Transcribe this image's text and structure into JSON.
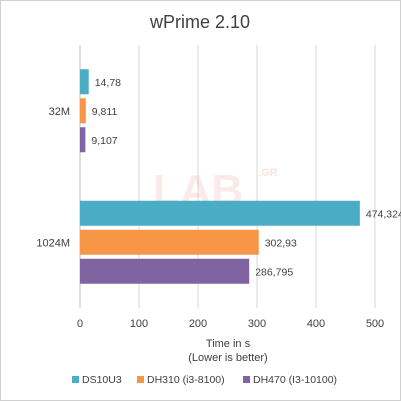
{
  "chart_data": {
    "type": "bar",
    "orientation": "horizontal",
    "title": "wPrime 2.10",
    "categories": [
      "32M",
      "1024M"
    ],
    "series": [
      {
        "name": "DS10U3",
        "color": "#4bacc6",
        "values": [
          14.78,
          474.324
        ],
        "labels": [
          "14,78",
          "474,324"
        ]
      },
      {
        "name": "DH310 (i3-8100)",
        "color": "#f79646",
        "values": [
          9.811,
          302.93
        ],
        "labels": [
          "9,811",
          "302,93"
        ]
      },
      {
        "name": "DH470 (I3-10100)",
        "color": "#8064a2",
        "values": [
          9.107,
          286.795
        ],
        "labels": [
          "9,107",
          "286,795"
        ]
      }
    ],
    "xlim": [
      0,
      500
    ],
    "xticks": [
      "0",
      "100",
      "200",
      "300",
      "400",
      "500"
    ],
    "xlabel": "Time in s",
    "xlabel_note": "(Lower is better)",
    "grid": true,
    "legend_position": "bottom"
  },
  "watermark": {
    "main": "LAB",
    "sub": ".GR"
  }
}
